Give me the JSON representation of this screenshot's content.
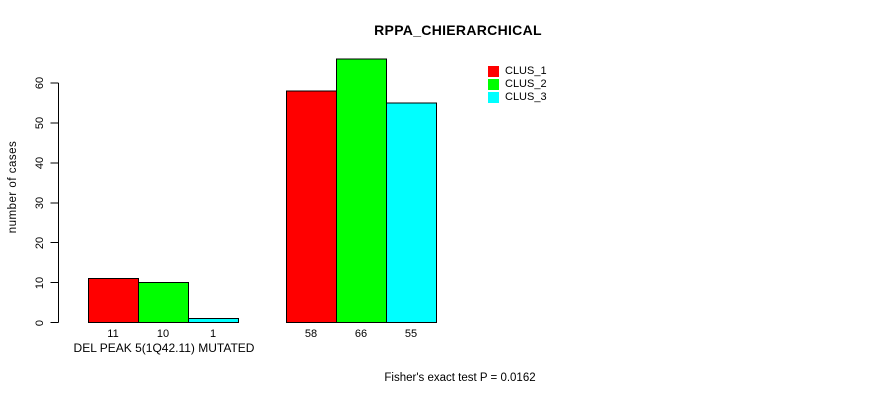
{
  "chart_data": {
    "type": "bar",
    "title": "RPPA_CHIERARCHICAL",
    "ylabel": "number of cases",
    "xlabel": "DEL PEAK 5(1Q42.11) MUTATED",
    "annotation": "Fisher's exact test P = 0.0162",
    "ylim": [
      0,
      66
    ],
    "yticks": [
      0,
      10,
      20,
      30,
      40,
      50,
      60
    ],
    "grid": false,
    "legend_position": "top-right",
    "groups": 2,
    "series": [
      {
        "name": "CLUS_1",
        "color": "#ff0000",
        "values": [
          11,
          58
        ]
      },
      {
        "name": "CLUS_2",
        "color": "#00ff00",
        "values": [
          10,
          66
        ]
      },
      {
        "name": "CLUS_3",
        "color": "#00ffff",
        "values": [
          1,
          55
        ]
      }
    ],
    "bar_labels": [
      "11",
      "10",
      "1",
      "58",
      "66",
      "55"
    ]
  },
  "colors": {
    "bar_border": "#000000",
    "axis": "#000000",
    "background": "#ffffff",
    "text": "#000000"
  }
}
